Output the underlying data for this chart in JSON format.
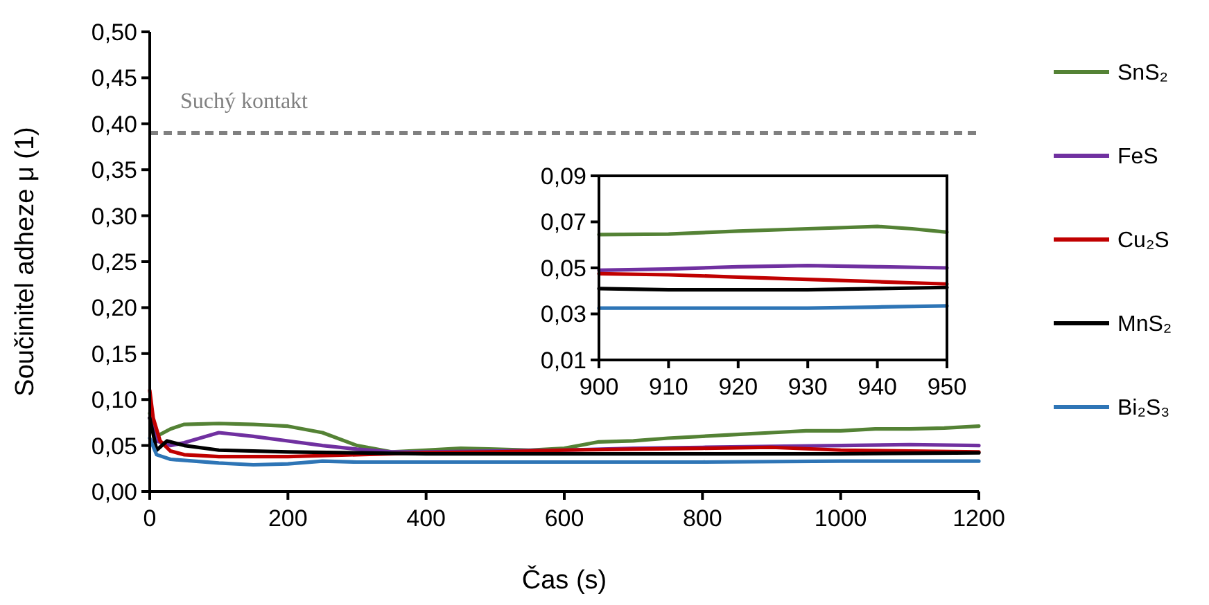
{
  "chart_data": [
    {
      "type": "line",
      "xlabel": "Čas (s)",
      "ylabel": "Součinitel adheze μ (1)",
      "xlim": [
        0,
        1200
      ],
      "xticks": [
        0,
        200,
        400,
        600,
        800,
        1000,
        1200
      ],
      "ylim": [
        0,
        0.5
      ],
      "yticks": [
        {
          "value": 0,
          "label": "0,00"
        },
        {
          "value": 0.05,
          "label": "0,05"
        },
        {
          "value": 0.1,
          "label": "0,10"
        },
        {
          "value": 0.15,
          "label": "0,15"
        },
        {
          "value": 0.2,
          "label": "0,20"
        },
        {
          "value": 0.25,
          "label": "0,25"
        },
        {
          "value": 0.3,
          "label": "0,30"
        },
        {
          "value": 0.35,
          "label": "0,35"
        },
        {
          "value": 0.4,
          "label": "0,40"
        },
        {
          "value": 0.45,
          "label": "0,45"
        },
        {
          "value": 0.5,
          "label": "0,50"
        }
      ],
      "grid": false,
      "legend": "right",
      "marker": "none",
      "line_style": "solid",
      "ref_lines": [
        {
          "axis": "y",
          "value": 0.39,
          "label": "Suchý kontakt",
          "color": "#808080",
          "line_style": "dashed"
        }
      ],
      "series": [
        {
          "name": "SnS₂",
          "color": "#548235",
          "x": [
            0,
            10,
            30,
            50,
            100,
            150,
            200,
            250,
            300,
            350,
            400,
            450,
            500,
            550,
            600,
            650,
            700,
            750,
            800,
            850,
            900,
            950,
            1000,
            1050,
            1100,
            1150,
            1200
          ],
          "values": [
            0.085,
            0.06,
            0.068,
            0.073,
            0.074,
            0.073,
            0.071,
            0.064,
            0.05,
            0.043,
            0.045,
            0.047,
            0.046,
            0.045,
            0.047,
            0.054,
            0.055,
            0.058,
            0.06,
            0.062,
            0.064,
            0.066,
            0.066,
            0.068,
            0.068,
            0.069,
            0.071
          ]
        },
        {
          "name": "FeS",
          "color": "#7030a0",
          "x": [
            0,
            10,
            30,
            50,
            100,
            150,
            200,
            250,
            300,
            350,
            400,
            500,
            600,
            700,
            800,
            900,
            1000,
            1100,
            1200
          ],
          "values": [
            0.08,
            0.055,
            0.05,
            0.053,
            0.064,
            0.06,
            0.055,
            0.05,
            0.046,
            0.043,
            0.043,
            0.044,
            0.045,
            0.047,
            0.048,
            0.049,
            0.05,
            0.051,
            0.05
          ]
        },
        {
          "name": "Cu₂S",
          "color": "#c00000",
          "x": [
            0,
            5,
            15,
            30,
            50,
            100,
            200,
            300,
            400,
            500,
            600,
            700,
            800,
            900,
            1000,
            1100,
            1200
          ],
          "values": [
            0.11,
            0.08,
            0.055,
            0.044,
            0.04,
            0.038,
            0.038,
            0.04,
            0.042,
            0.043,
            0.045,
            0.046,
            0.047,
            0.048,
            0.045,
            0.044,
            0.043
          ]
        },
        {
          "name": "MnS₂",
          "color": "#000000",
          "x": [
            0,
            10,
            25,
            50,
            100,
            200,
            300,
            400,
            600,
            800,
            1000,
            1200
          ],
          "values": [
            0.08,
            0.045,
            0.055,
            0.05,
            0.045,
            0.043,
            0.042,
            0.041,
            0.041,
            0.041,
            0.041,
            0.042
          ]
        },
        {
          "name": "Bi₂S₃",
          "color": "#2e75b6",
          "x": [
            0,
            10,
            30,
            100,
            150,
            200,
            250,
            300,
            400,
            600,
            800,
            1000,
            1200
          ],
          "values": [
            0.058,
            0.04,
            0.035,
            0.031,
            0.029,
            0.03,
            0.033,
            0.032,
            0.032,
            0.032,
            0.032,
            0.033,
            0.033
          ]
        }
      ]
    },
    {
      "type": "line",
      "xlim": [
        900,
        950
      ],
      "xticks": [
        900,
        910,
        920,
        930,
        940,
        950
      ],
      "ylim": [
        0.01,
        0.09
      ],
      "yticks": [
        {
          "value": 0.01,
          "label": "0,01"
        },
        {
          "value": 0.03,
          "label": "0,03"
        },
        {
          "value": 0.05,
          "label": "0,05"
        },
        {
          "value": 0.07,
          "label": "0,07"
        },
        {
          "value": 0.09,
          "label": "0,09"
        }
      ],
      "grid": false,
      "legend": false,
      "marker": "none",
      "line_style": "solid",
      "series": [
        {
          "color": "#548235",
          "x": [
            900,
            910,
            920,
            930,
            940,
            945,
            950
          ],
          "values": [
            0.0645,
            0.0647,
            0.066,
            0.067,
            0.068,
            0.067,
            0.0655
          ]
        },
        {
          "color": "#7030a0",
          "x": [
            900,
            910,
            920,
            930,
            940,
            950
          ],
          "values": [
            0.049,
            0.0495,
            0.0505,
            0.051,
            0.0505,
            0.05
          ]
        },
        {
          "color": "#c00000",
          "x": [
            900,
            910,
            920,
            930,
            940,
            950
          ],
          "values": [
            0.0475,
            0.047,
            0.046,
            0.045,
            0.044,
            0.043
          ]
        },
        {
          "color": "#000000",
          "x": [
            900,
            910,
            920,
            930,
            940,
            950
          ],
          "values": [
            0.041,
            0.0405,
            0.0405,
            0.0405,
            0.041,
            0.0415
          ]
        },
        {
          "color": "#2e75b6",
          "x": [
            900,
            910,
            920,
            930,
            940,
            950
          ],
          "values": [
            0.0325,
            0.0325,
            0.0325,
            0.0325,
            0.033,
            0.0335
          ]
        }
      ]
    }
  ]
}
